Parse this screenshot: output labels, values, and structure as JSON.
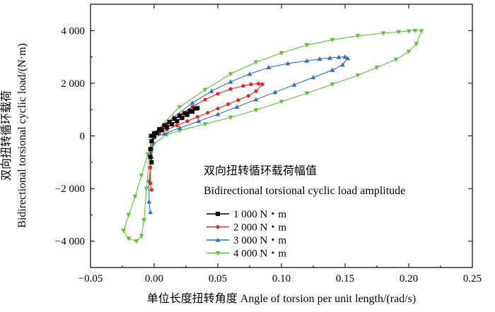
{
  "chart_data": {
    "type": "line",
    "title": "",
    "xlabel": "单位长度扭转角度 Angle of torsion per unit length/(rad/s)",
    "ylabel": "双向扭转循环载荷 Bidirectional torsional cyclic load/(N·m)",
    "ylabel_lines": [
      "双向扭转循环载荷",
      "Bidirectional torsional cyclic load/(N·m)"
    ],
    "xlim": [
      -0.05,
      0.25
    ],
    "ylim": [
      -5000,
      5000
    ],
    "x_ticks": [
      -0.05,
      0.0,
      0.05,
      0.1,
      0.15,
      0.2,
      0.25
    ],
    "x_tick_labels": [
      "−0.05",
      "0.00",
      "0.05",
      "0.10",
      "0.15",
      "0.20",
      "0.25"
    ],
    "y_ticks": [
      -4000,
      -2000,
      0,
      2000,
      4000
    ],
    "y_tick_labels": [
      "−4 000",
      "−2 000",
      "0",
      "2 000",
      "4 000"
    ],
    "legend": {
      "title_cn": "双向扭转循环载荷幅值",
      "title_en": "Bidirectional torsional cyclic load amplitude",
      "placement": "center-right"
    },
    "series": [
      {
        "name": "1 000 N・m",
        "color": "#000000",
        "marker": "square",
        "x": [
          -0.002,
          0.0,
          0.004,
          0.008,
          0.012,
          0.016,
          0.02,
          0.024,
          0.028,
          0.032,
          0.034,
          0.03,
          0.026,
          0.022,
          0.018,
          0.014,
          0.01,
          0.006,
          0.002,
          0.0,
          -0.002,
          -0.003,
          -0.003,
          -0.002
        ],
        "y": [
          0,
          100,
          250,
          400,
          530,
          650,
          760,
          860,
          950,
          1040,
          1050,
          920,
          800,
          680,
          560,
          440,
          330,
          220,
          110,
          0,
          -200,
          -500,
          -800,
          -1000
        ]
      },
      {
        "name": "2 000 N・m",
        "color": "#e8241f",
        "marker": "circle",
        "x": [
          -0.002,
          0.0,
          0.01,
          0.02,
          0.03,
          0.04,
          0.05,
          0.06,
          0.07,
          0.076,
          0.082,
          0.085,
          0.08,
          0.074,
          0.066,
          0.058,
          0.05,
          0.042,
          0.034,
          0.026,
          0.018,
          0.01,
          0.004,
          0.0,
          -0.002,
          -0.003,
          -0.003,
          -0.002
        ],
        "y": [
          0,
          50,
          450,
          800,
          1100,
          1380,
          1600,
          1780,
          1900,
          1960,
          1980,
          1960,
          1700,
          1520,
          1360,
          1200,
          1040,
          880,
          720,
          560,
          400,
          240,
          100,
          0,
          -500,
          -1200,
          -1800,
          -2050
        ]
      },
      {
        "name": "3 000 N・m",
        "color": "#2f6fc8",
        "marker": "triangle",
        "x": [
          -0.003,
          0.0,
          0.015,
          0.03,
          0.045,
          0.06,
          0.075,
          0.09,
          0.105,
          0.12,
          0.13,
          0.138,
          0.145,
          0.15,
          0.152,
          0.148,
          0.14,
          0.125,
          0.11,
          0.095,
          0.08,
          0.065,
          0.05,
          0.035,
          0.02,
          0.008,
          0.0,
          -0.002,
          -0.004,
          -0.004,
          -0.003
        ],
        "y": [
          0,
          80,
          700,
          1250,
          1700,
          2050,
          2350,
          2600,
          2750,
          2850,
          2920,
          2960,
          2990,
          3000,
          2950,
          2700,
          2500,
          2220,
          1940,
          1660,
          1380,
          1100,
          820,
          560,
          300,
          80,
          -50,
          -800,
          -1700,
          -2500,
          -2900
        ]
      },
      {
        "name": "4 000 N・m",
        "color": "#5cc23a",
        "marker": "triangle-down",
        "x": [
          -0.003,
          0.0,
          0.02,
          0.04,
          0.06,
          0.08,
          0.1,
          0.12,
          0.14,
          0.16,
          0.18,
          0.192,
          0.2,
          0.205,
          0.21,
          0.206,
          0.2,
          0.19,
          0.175,
          0.16,
          0.14,
          0.12,
          0.1,
          0.08,
          0.06,
          0.04,
          0.02,
          0.01,
          0.0,
          -0.005,
          -0.01,
          -0.015,
          -0.02,
          -0.024,
          -0.02,
          -0.014,
          -0.01,
          -0.008,
          -0.006,
          -0.004
        ],
        "y": [
          0,
          100,
          1100,
          1750,
          2350,
          2800,
          3150,
          3450,
          3650,
          3800,
          3900,
          3950,
          3980,
          4000,
          3980,
          3500,
          3200,
          2900,
          2600,
          2300,
          1960,
          1620,
          1300,
          980,
          700,
          450,
          200,
          50,
          -300,
          -700,
          -1500,
          -2300,
          -3000,
          -3600,
          -3900,
          -4000,
          -3800,
          -3200,
          -2000,
          -800
        ]
      }
    ]
  }
}
